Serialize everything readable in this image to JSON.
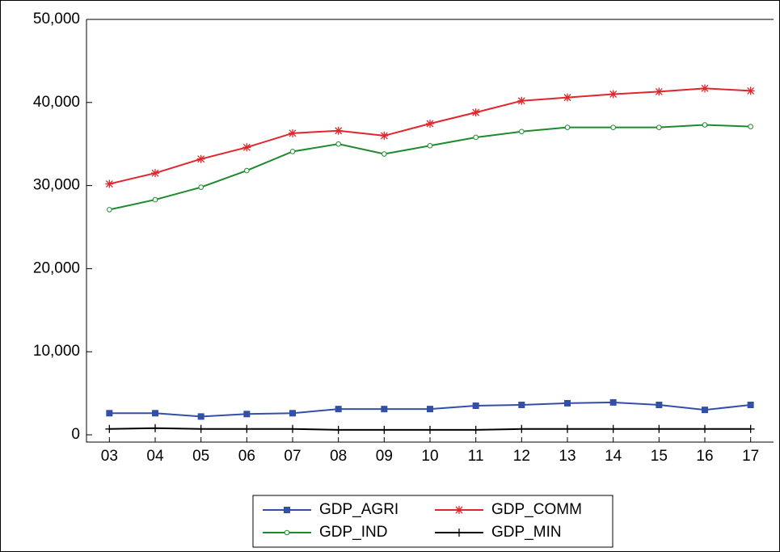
{
  "chart_data": {
    "type": "line",
    "categories": [
      "03",
      "04",
      "05",
      "06",
      "07",
      "08",
      "09",
      "10",
      "11",
      "12",
      "13",
      "14",
      "15",
      "16",
      "17"
    ],
    "series": [
      {
        "name": "GDP_AGRI",
        "color": "#3350a8",
        "marker": "square",
        "values": [
          2600,
          2600,
          2200,
          2500,
          2600,
          3100,
          3100,
          3100,
          3500,
          3600,
          3800,
          3900,
          3600,
          3000,
          3600
        ]
      },
      {
        "name": "GDP_COMM",
        "color": "#e0262b",
        "marker": "asterisk",
        "values": [
          30200,
          31500,
          33200,
          34600,
          36300,
          36600,
          36000,
          37450,
          38800,
          40200,
          40600,
          41000,
          41300,
          41700,
          41400
        ]
      },
      {
        "name": "GDP_IND",
        "color": "#1e8a2e",
        "marker": "circle",
        "values": [
          27100,
          28300,
          29800,
          31800,
          34100,
          35000,
          33800,
          34800,
          35800,
          36500,
          37000,
          37000,
          37000,
          37300,
          37100
        ]
      },
      {
        "name": "GDP_MIN",
        "color": "#000000",
        "marker": "plus",
        "values": [
          700,
          800,
          700,
          700,
          700,
          600,
          600,
          600,
          600,
          700,
          700,
          700,
          700,
          700,
          700
        ]
      }
    ],
    "ylim": [
      0,
      50000
    ],
    "yticks": [
      0,
      {
        "value": 10000,
        "label": "10,000"
      },
      {
        "value": 20000,
        "label": "20,000"
      },
      {
        "value": 30000,
        "label": "30,000"
      },
      {
        "value": 40000,
        "label": "40,000"
      },
      {
        "value": 50000,
        "label": "50,000"
      }
    ],
    "grid": false
  }
}
